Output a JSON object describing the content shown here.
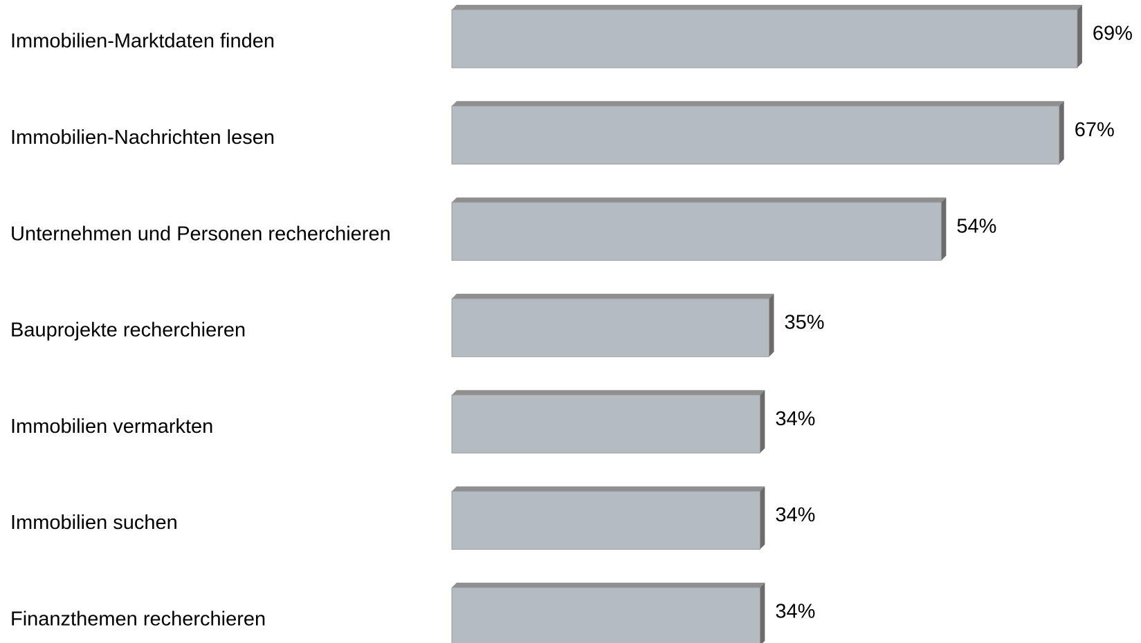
{
  "chart_data": {
    "type": "bar",
    "orientation": "horizontal",
    "categories": [
      "Immobilien-Marktdaten finden",
      "Immobilien-Nachrichten lesen",
      "Unternehmen und Personen recherchieren",
      "Bauprojekte recherchieren",
      "Immobilien vermarkten",
      "Immobilien suchen",
      "Finanzthemen recherchieren"
    ],
    "values": [
      69,
      67,
      54,
      35,
      34,
      34,
      34
    ],
    "value_labels": [
      "69%",
      "67%",
      "54%",
      "35%",
      "34%",
      "34%",
      "34%"
    ],
    "color": "#b4bbc1"
  }
}
